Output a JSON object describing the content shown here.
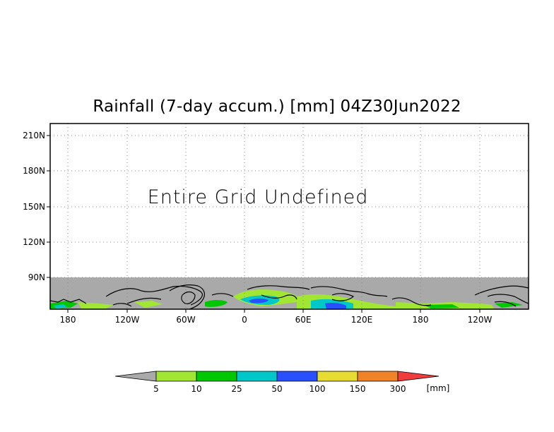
{
  "title": "Rainfall (7-day accum.) [mm] 04Z30Jun2022",
  "message": "Entire Grid Undefined",
  "axes": {
    "lat_ticks": [
      "210N",
      "180N",
      "150N",
      "120N",
      "90N"
    ],
    "lon_ticks": [
      "180",
      "120W",
      "60W",
      "0",
      "60E",
      "120E",
      "180",
      "120W"
    ]
  },
  "colorbar": {
    "labels": [
      "5",
      "10",
      "25",
      "50",
      "100",
      "150",
      "300"
    ],
    "unit": "[mm]",
    "colors": [
      "#aaaaaa",
      "#a0e632",
      "#00c800",
      "#00c8c8",
      "#2850ff",
      "#e6dc32",
      "#f08228",
      "#f03c3c"
    ]
  },
  "colors": {
    "undefined_grid": "#a9a9a9",
    "coastline": "#000000"
  }
}
